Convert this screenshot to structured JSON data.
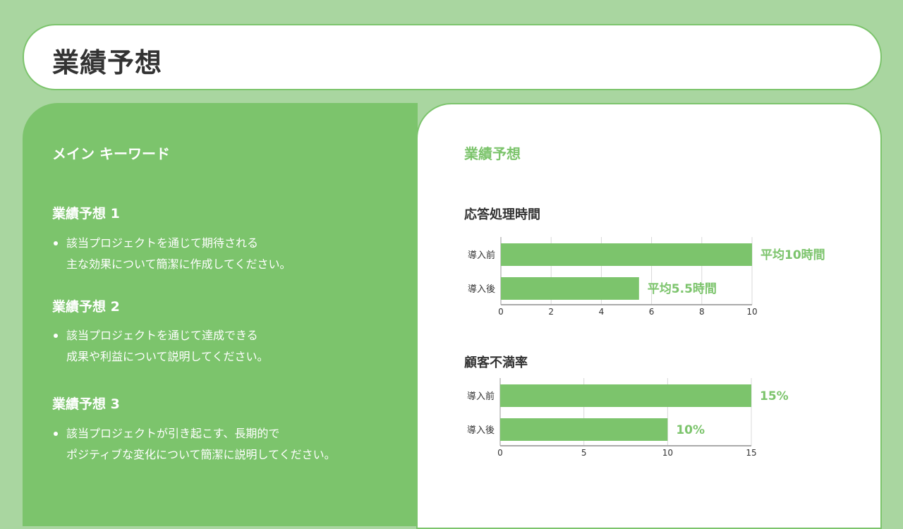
{
  "header": {
    "title": "業績予想"
  },
  "left": {
    "keyword_title": "メイン キーワード",
    "sections": [
      {
        "title": "業績予想 1",
        "lines": [
          "該当プロジェクトを通じて期待される",
          "主な効果について簡潔に作成してください。"
        ]
      },
      {
        "title": "業績予想 2",
        "lines": [
          "該当プロジェクトを通じて達成できる",
          "成果や利益について説明してください。"
        ]
      },
      {
        "title": "業績予想 3",
        "lines": [
          "該当プロジェクトが引き起こす、長期的で",
          "ポジティブな変化について簡潔に説明してください。"
        ]
      }
    ]
  },
  "right": {
    "title": "業績予想"
  },
  "colors": {
    "accent": "#7cc46c",
    "background": "#a9d6a0",
    "text": "#333333"
  },
  "chart_data": [
    {
      "type": "bar",
      "orientation": "horizontal",
      "title": "応答処理時間",
      "categories": [
        "導入前",
        "導入後"
      ],
      "values": [
        10,
        5.5
      ],
      "data_labels": [
        "平均10時間",
        "平均5.5時間"
      ],
      "xlim": [
        0,
        10
      ],
      "ticks": [
        "0",
        "2",
        "4",
        "6",
        "8",
        "10"
      ],
      "grid": true
    },
    {
      "type": "bar",
      "orientation": "horizontal",
      "title": "顧客不満率",
      "categories": [
        "導入前",
        "導入後"
      ],
      "values": [
        15,
        10
      ],
      "data_labels": [
        "15%",
        "10%"
      ],
      "xlim": [
        0,
        15
      ],
      "ticks": [
        "0",
        "5",
        "10",
        "15"
      ],
      "grid": true
    }
  ]
}
